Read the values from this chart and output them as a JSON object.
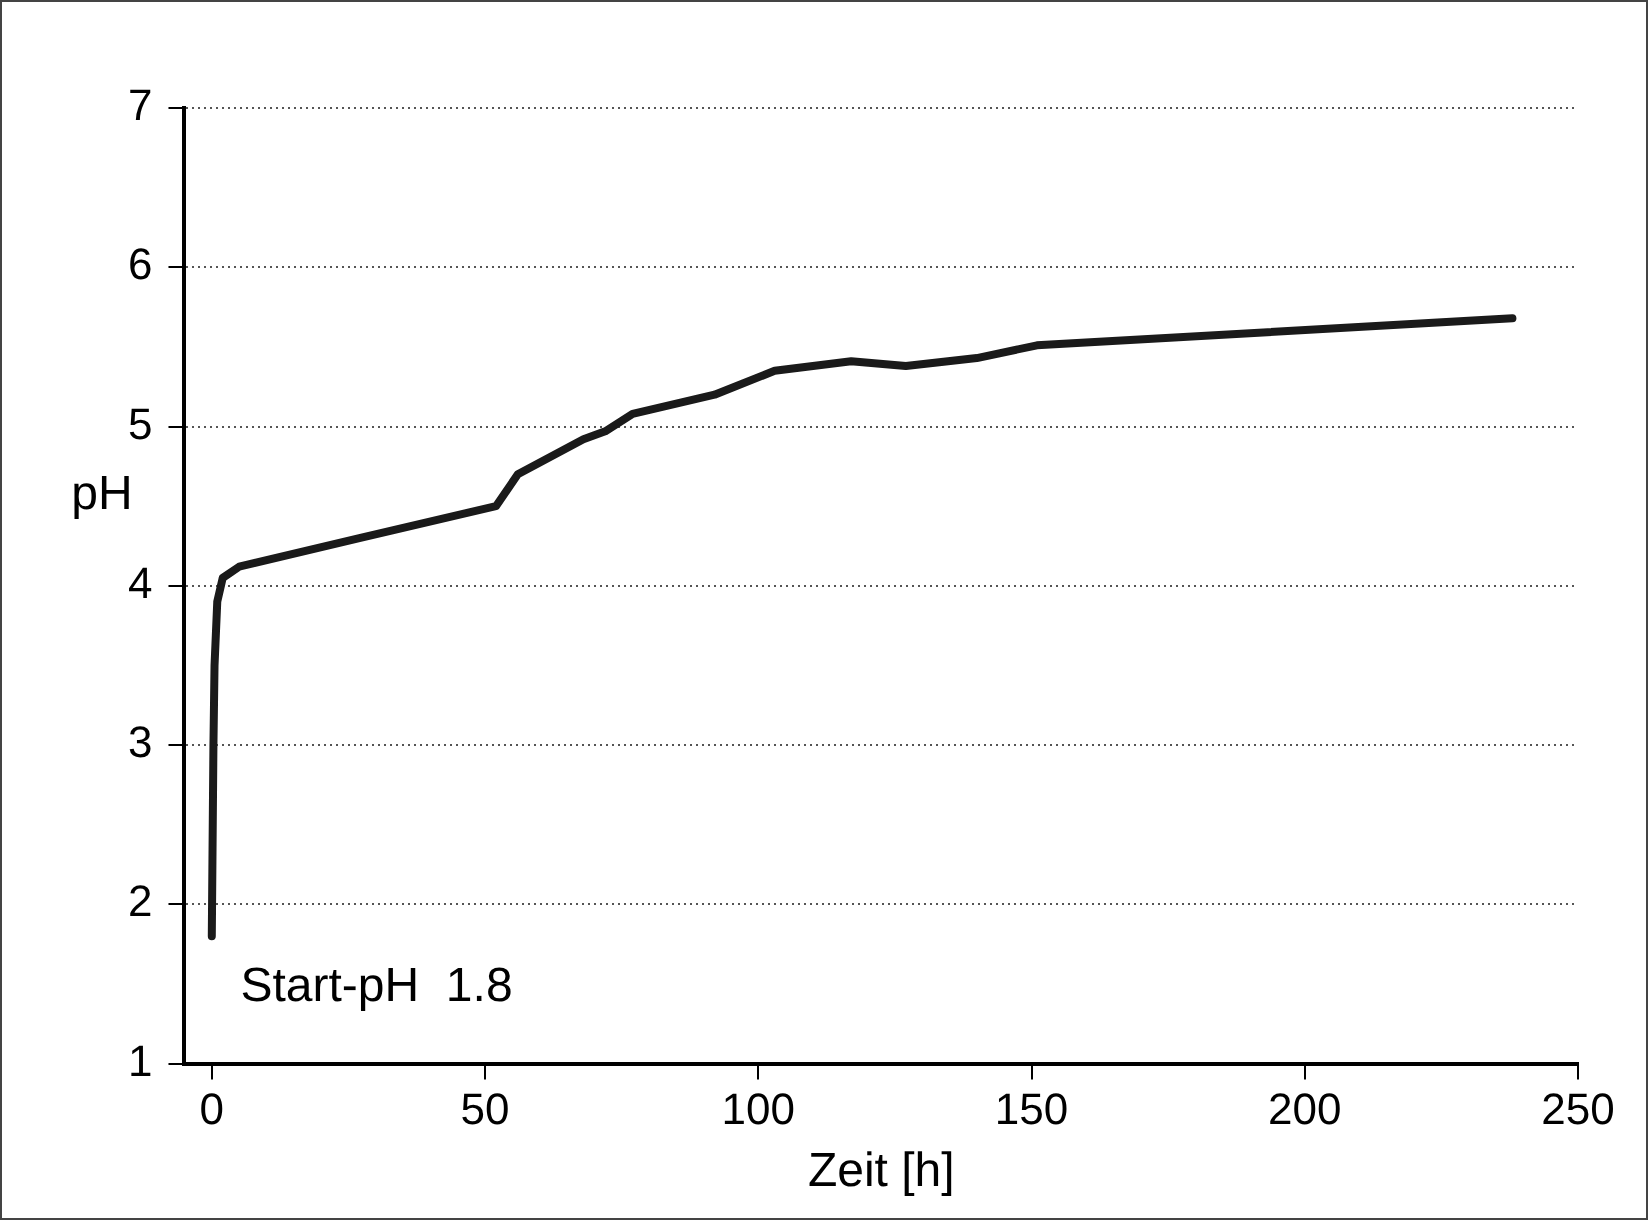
{
  "chart_data": {
    "type": "line",
    "xlabel": "Zeit [h]",
    "ylabel": "pH",
    "xlim": [
      -5,
      250
    ],
    "xticks": [
      0,
      50,
      100,
      150,
      200,
      250
    ],
    "ylim": [
      1,
      7
    ],
    "yticks": [
      1,
      2,
      3,
      4,
      5,
      6,
      7
    ],
    "grid": "y",
    "legend": false,
    "marker": "none",
    "line_style": "solid",
    "annotations": [
      "Start-pH  1.8"
    ],
    "series": [
      {
        "color": "#1a1a1a",
        "x": [
          0,
          0.3,
          0.5,
          1,
          2,
          5,
          27,
          52,
          56,
          68,
          72,
          77,
          92,
          103,
          117,
          127,
          140,
          151,
          238
        ],
        "values": [
          1.8,
          3.0,
          3.5,
          3.9,
          4.05,
          4.12,
          4.3,
          4.5,
          4.7,
          4.92,
          4.97,
          5.08,
          5.2,
          5.35,
          5.41,
          5.38,
          5.43,
          5.51,
          5.68
        ]
      }
    ]
  }
}
